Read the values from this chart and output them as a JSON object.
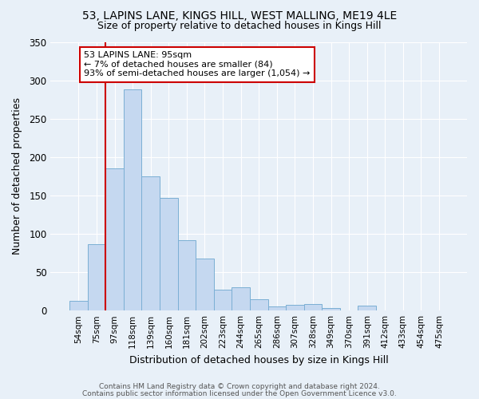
{
  "title": "53, LAPINS LANE, KINGS HILL, WEST MALLING, ME19 4LE",
  "subtitle": "Size of property relative to detached houses in Kings Hill",
  "xlabel": "Distribution of detached houses by size in Kings Hill",
  "ylabel": "Number of detached properties",
  "bar_labels": [
    "54sqm",
    "75sqm",
    "97sqm",
    "118sqm",
    "139sqm",
    "160sqm",
    "181sqm",
    "202sqm",
    "223sqm",
    "244sqm",
    "265sqm",
    "286sqm",
    "307sqm",
    "328sqm",
    "349sqm",
    "370sqm",
    "391sqm",
    "412sqm",
    "433sqm",
    "454sqm",
    "475sqm"
  ],
  "bar_values": [
    13,
    86,
    185,
    288,
    175,
    147,
    92,
    68,
    27,
    30,
    15,
    5,
    7,
    9,
    3,
    0,
    6,
    0,
    0,
    0,
    0
  ],
  "bar_color": "#c5d8f0",
  "bar_edge_color": "#7bafd4",
  "vline_color": "#cc0000",
  "annotation_line1": "53 LAPINS LANE: 95sqm",
  "annotation_line2": "← 7% of detached houses are smaller (84)",
  "annotation_line3": "93% of semi-detached houses are larger (1,054) →",
  "ylim": [
    0,
    350
  ],
  "yticks": [
    0,
    50,
    100,
    150,
    200,
    250,
    300,
    350
  ],
  "background_color": "#e8f0f8",
  "plot_bg_color": "#dce8f5",
  "grid_color": "#ffffff",
  "footer_line1": "Contains HM Land Registry data © Crown copyright and database right 2024.",
  "footer_line2": "Contains public sector information licensed under the Open Government Licence v3.0.",
  "title_fontsize": 10,
  "subtitle_fontsize": 9,
  "vline_bar_index": 2
}
